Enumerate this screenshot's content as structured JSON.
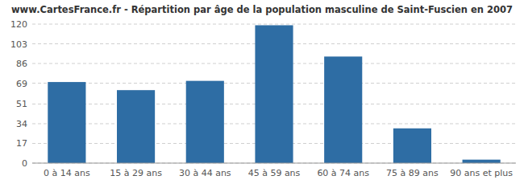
{
  "chart_data": {
    "type": "bar",
    "title": "www.CartesFrance.fr - Répartition par âge de la population masculine de Saint-Fuscien en 2007",
    "categories": [
      "0 à 14 ans",
      "15 à 29 ans",
      "30 à 44 ans",
      "45 à 59 ans",
      "60 à 74 ans",
      "75 à 89 ans",
      "90 ans et plus"
    ],
    "values": [
      70,
      63,
      71,
      119,
      92,
      30,
      3
    ],
    "color": "#2e6da4",
    "ylim": [
      0,
      120
    ],
    "yticks": [
      0,
      17,
      34,
      51,
      69,
      86,
      103,
      120
    ],
    "grid": true
  }
}
